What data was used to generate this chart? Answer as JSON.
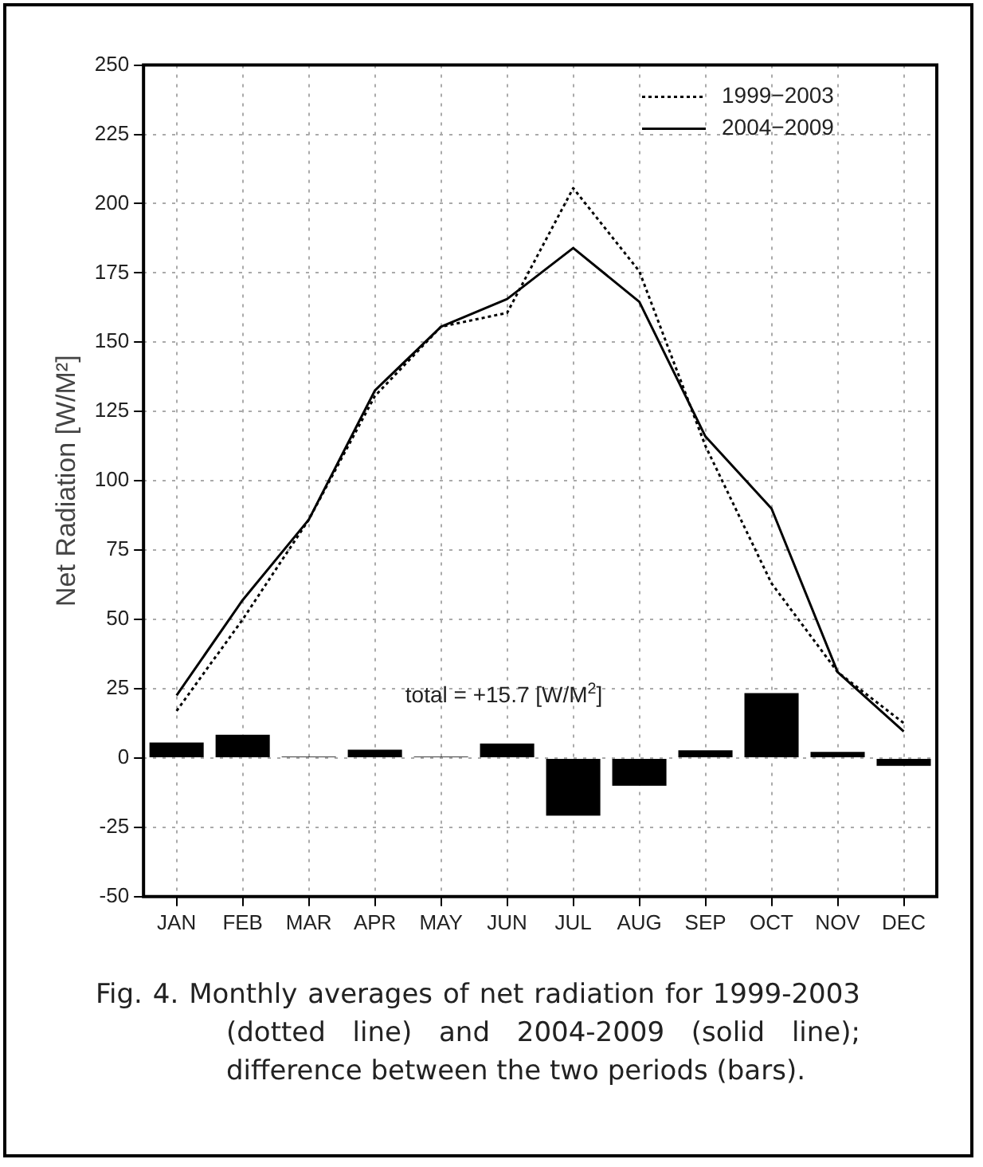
{
  "chart_data": {
    "type": "bar",
    "ylabel": "Net Radiation [W/M²]",
    "categories": [
      "JAN",
      "FEB",
      "MAR",
      "APR",
      "MAY",
      "JUN",
      "JUL",
      "AUG",
      "SEP",
      "OCT",
      "NOV",
      "DEC"
    ],
    "series": [
      {
        "color": "#000000",
        "values": [
          5.6,
          8.4,
          0.5,
          3,
          0.5,
          5.2,
          -20.8,
          -10,
          2.8,
          23.4,
          2.2,
          -2.8
        ]
      },
      {
        "type": "line",
        "name": "1999−2003",
        "color": "#000000",
        "line_style": "dotted",
        "values": [
          17,
          50,
          86,
          130.6,
          155.6,
          160.6,
          205.6,
          175.6,
          112.6,
          63,
          31,
          12.6
        ]
      },
      {
        "type": "line",
        "name": "2004−2009",
        "color": "#000000",
        "line_style": "solid",
        "values": [
          22.6,
          57,
          86,
          132.6,
          155.6,
          165.6,
          184,
          164.6,
          116,
          90,
          31,
          9.6
        ]
      }
    ],
    "ylim": [
      -50,
      250
    ],
    "yticks": [
      -50,
      -25,
      0,
      25,
      50,
      75,
      100,
      125,
      150,
      175,
      200,
      225,
      250
    ],
    "grid": true,
    "legend": "top right",
    "marker": "none",
    "annotations": [
      "total = +15.7 [W/M$^{2}$]",
      "Fig. 4.  Monthly averages of net radiation for 1999-2003 (dotted line) and 2004-2009 (solid line); difference between the two periods (bars)."
    ]
  }
}
